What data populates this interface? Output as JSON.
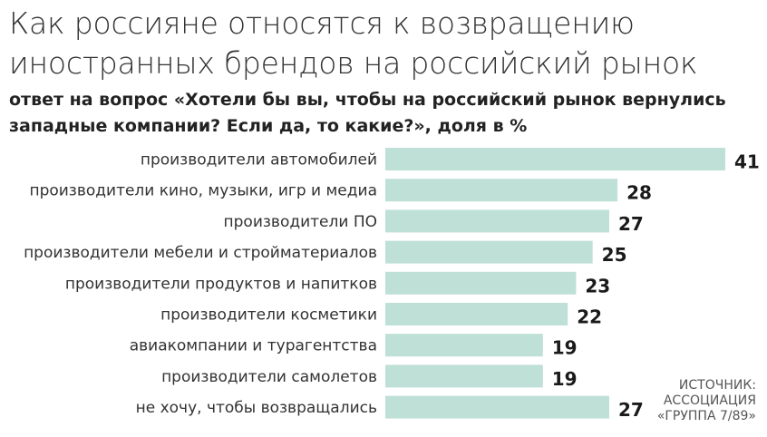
{
  "title": "Как россияне относятся к возвращению иностранных брендов на российский рынок",
  "subtitle": "ответ на вопрос «Хотели бы вы, чтобы на российский рынок вернулись западные компании? Если да, то какие?», доля в %",
  "source": {
    "line1": "ИСТОЧНИК:",
    "line2": "АССОЦИАЦИЯ",
    "line3": "«ГРУППА 7/89»"
  },
  "colors": {
    "bar": "#bfe0d7",
    "text": "#333333"
  },
  "chart_data": {
    "type": "bar",
    "orientation": "horizontal",
    "categories": [
      "производители автомобилей",
      "производители кино, музыки, игр и медиа",
      "производители ПО",
      "производители мебели и стройматериалов",
      "производители продуктов и напитков",
      "производители косметики",
      "авиакомпании и турагентства",
      "производители самолетов",
      "не хочу, чтобы возвращались"
    ],
    "values": [
      41,
      28,
      27,
      25,
      23,
      22,
      19,
      19,
      27
    ],
    "value_labels": [
      "41",
      "28",
      "27",
      "25",
      "23",
      "22",
      "19",
      "19",
      "27"
    ],
    "xlim": [
      0,
      41
    ],
    "grid": false,
    "legend": "none"
  }
}
